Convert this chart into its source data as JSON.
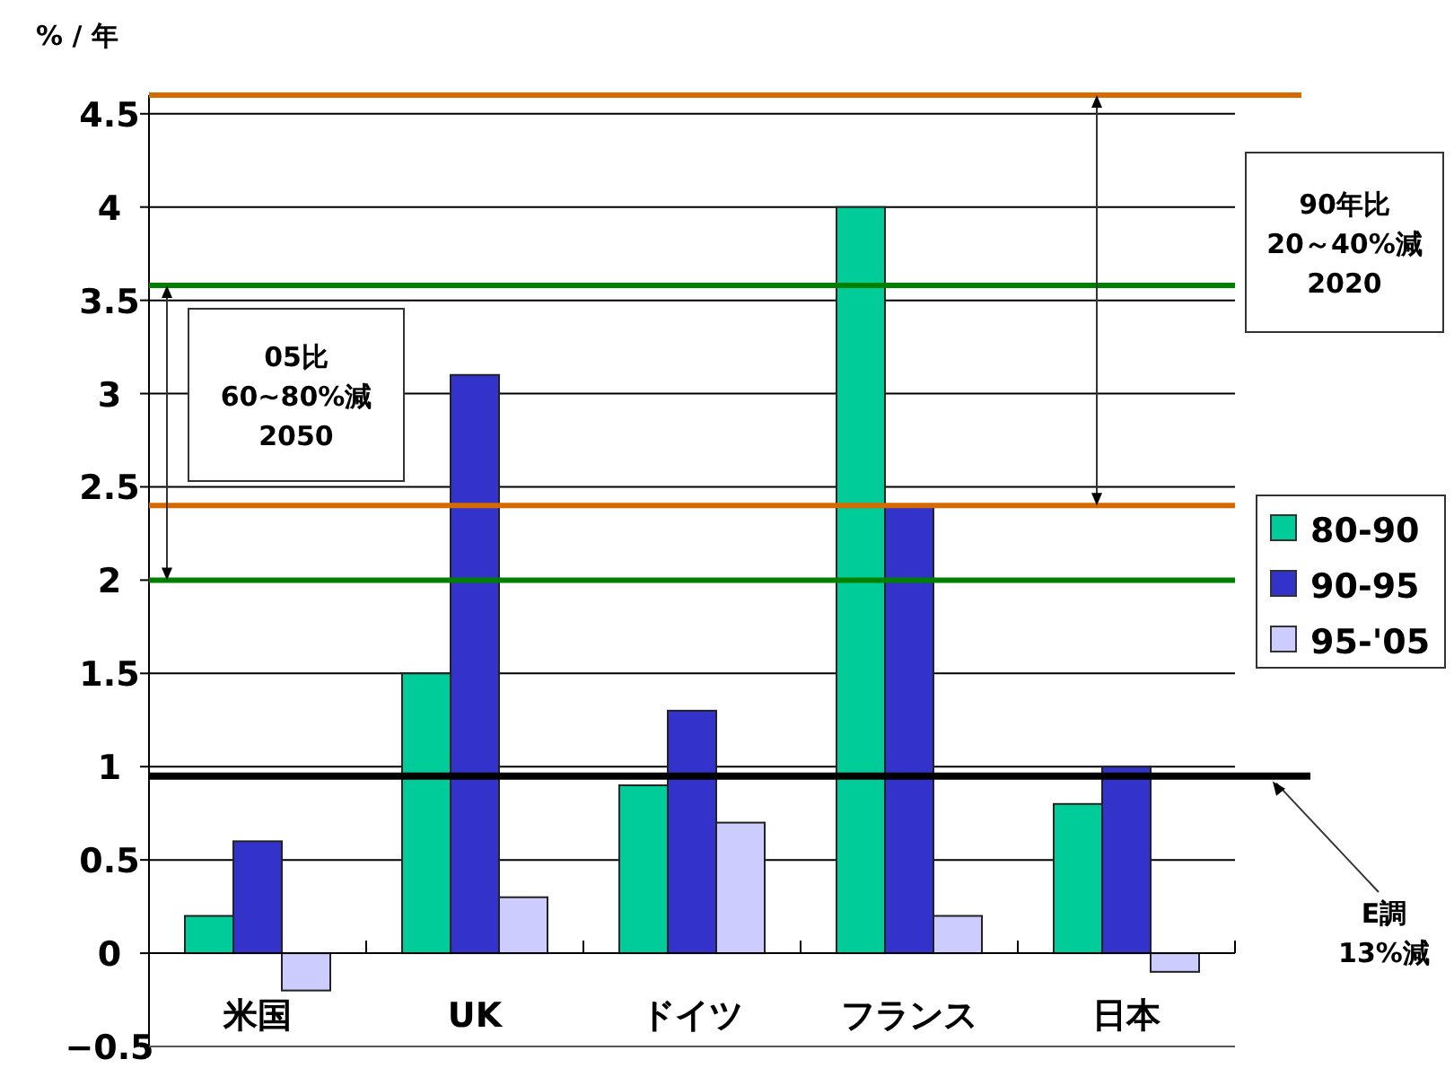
{
  "chart_data": {
    "type": "bar",
    "ylabel": "% / 年",
    "categories": [
      "米国",
      "UK",
      "ドイツ",
      "フランス",
      "日本"
    ],
    "series": [
      {
        "name": "80-90",
        "color": "#00cc99",
        "values": [
          0.2,
          1.5,
          0.9,
          4.0,
          0.8
        ]
      },
      {
        "name": "90-95",
        "color": "#3333cc",
        "values": [
          0.6,
          3.1,
          1.3,
          2.4,
          1.0
        ]
      },
      {
        "name": "95-'05",
        "color": "#ccccff",
        "values": [
          -0.2,
          0.3,
          0.7,
          0.2,
          -0.1
        ]
      }
    ],
    "ylim": [
      -0.5,
      4.6
    ],
    "yticks": [
      -0.5,
      0,
      0.5,
      1,
      1.5,
      2,
      2.5,
      3,
      3.5,
      4,
      4.5
    ],
    "grid": "y",
    "legend": "right",
    "ref_lines": [
      {
        "axis": "y",
        "value": 4.6,
        "color": "#d46a00"
      },
      {
        "axis": "y",
        "value": 2.4,
        "color": "#d46a00"
      },
      {
        "axis": "y",
        "value": 3.58,
        "color": "#008000"
      },
      {
        "axis": "y",
        "value": 2.0,
        "color": "#008000"
      },
      {
        "axis": "y",
        "value": 0.95,
        "color": "#000000"
      }
    ],
    "annotations": [
      "05比\n60~80%減\n2050",
      "90年比\n20～40%減\n2020",
      "E調\n13%減"
    ]
  }
}
